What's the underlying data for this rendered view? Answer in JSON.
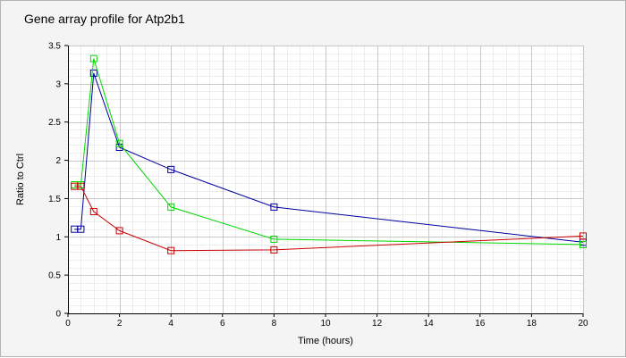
{
  "chart_data": {
    "type": "line",
    "title": "Gene array profile for Atp2b1",
    "xlabel": "Time (hours)",
    "ylabel": "Ratio to Ctrl",
    "xlim": [
      0,
      20
    ],
    "ylim": [
      0,
      3.5
    ],
    "x_ticks": [
      "0",
      "2",
      "4",
      "6",
      "8",
      "10",
      "12",
      "14",
      "16",
      "18",
      "20"
    ],
    "y_ticks": [
      "0",
      "0.5",
      "1",
      "1.5",
      "2",
      "2.5",
      "3",
      "3.5"
    ],
    "grid": true,
    "marker": "square",
    "series": [
      {
        "color": "#0000a0",
        "x": [
          0.25,
          0.5,
          1,
          2,
          4,
          8,
          20
        ],
        "y": [
          1.1,
          1.1,
          3.14,
          2.17,
          1.88,
          1.39,
          0.93
        ]
      },
      {
        "color": "#00d800",
        "x": [
          0.25,
          0.5,
          1,
          2,
          4,
          8,
          20
        ],
        "y": [
          1.68,
          1.68,
          3.33,
          2.22,
          1.39,
          0.97,
          0.9
        ]
      },
      {
        "color": "#c80000",
        "x": [
          0.25,
          0.5,
          1,
          2,
          4,
          8,
          20
        ],
        "y": [
          1.66,
          1.66,
          1.33,
          1.08,
          0.82,
          0.83,
          1.01
        ]
      }
    ]
  }
}
